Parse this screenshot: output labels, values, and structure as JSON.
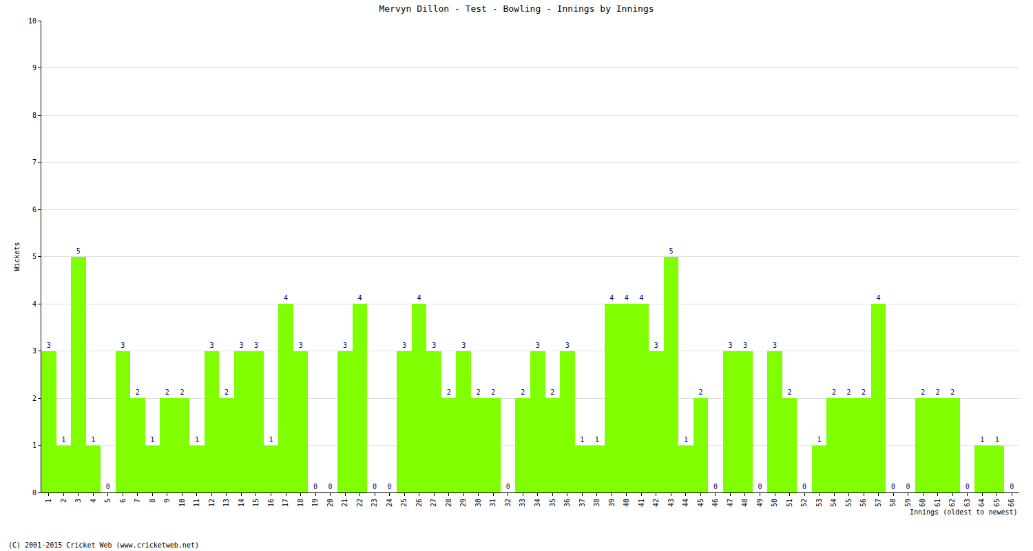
{
  "chart_data": {
    "type": "bar",
    "title": "Mervyn Dillon - Test - Bowling - Innings by Innings",
    "x_label": "Innings (oldest to newest)",
    "y_label": "Wickets",
    "footer": "(C) 2001-2015 Cricket Web (www.cricketweb.net)",
    "categories": [
      "1",
      "2",
      "3",
      "4",
      "5",
      "6",
      "7",
      "8",
      "9",
      "10",
      "11",
      "12",
      "13",
      "14",
      "15",
      "16",
      "17",
      "18",
      "19",
      "20",
      "21",
      "22",
      "23",
      "24",
      "25",
      "26",
      "27",
      "28",
      "29",
      "30",
      "31",
      "32",
      "33",
      "34",
      "35",
      "36",
      "37",
      "38",
      "39",
      "40",
      "41",
      "42",
      "43",
      "44",
      "45",
      "46",
      "47",
      "48",
      "49",
      "50",
      "51",
      "52",
      "53",
      "54",
      "55",
      "56",
      "57",
      "58",
      "59",
      "60",
      "61",
      "62",
      "63",
      "64",
      "65",
      "66"
    ],
    "values": [
      3,
      1,
      5,
      1,
      0,
      3,
      2,
      1,
      2,
      2,
      1,
      3,
      2,
      3,
      3,
      1,
      4,
      3,
      0,
      0,
      3,
      4,
      0,
      0,
      3,
      4,
      3,
      2,
      3,
      2,
      2,
      0,
      2,
      3,
      2,
      3,
      1,
      1,
      4,
      4,
      4,
      3,
      5,
      1,
      2,
      0,
      3,
      3,
      0,
      3,
      2,
      0,
      1,
      2,
      2,
      2,
      4,
      0,
      0,
      2,
      2,
      2,
      0,
      1,
      1,
      0
    ],
    "color": "#7fff00",
    "ylim": [
      0,
      10
    ],
    "yticks": [
      0,
      1,
      2,
      3,
      4,
      5,
      6,
      7,
      8,
      9,
      10
    ],
    "grid": true,
    "data_labels": true
  }
}
